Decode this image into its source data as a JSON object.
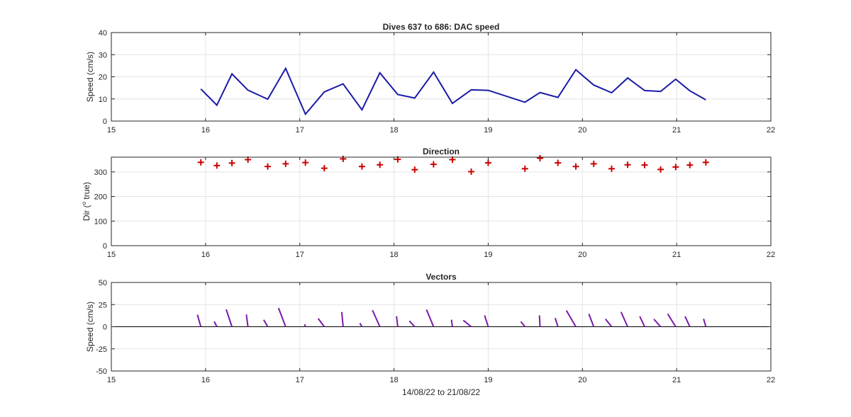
{
  "figure": {
    "xlabel_bottom": "14/08/22 to 21/08/22",
    "colors": {
      "speed_line": "#1a1aa8",
      "direction_marker": "#cc0000",
      "vector_line": "#7a1aa8",
      "grid": "#e4e4e4",
      "axis": "#262626"
    }
  },
  "chart_data": [
    {
      "type": "line",
      "title": "Dives 637 to 686: DAC speed",
      "xlabel": "",
      "ylabel": "Speed (cm/s)",
      "xlim": [
        15,
        22
      ],
      "ylim": [
        0,
        40
      ],
      "xticks": [
        "15",
        "16",
        "17",
        "18",
        "19",
        "20",
        "21",
        "22"
      ],
      "yticks": [
        "0",
        "10",
        "20",
        "30",
        "40"
      ],
      "grid": true,
      "x": [
        15.95,
        16.12,
        16.28,
        16.45,
        16.66,
        16.85,
        17.06,
        17.26,
        17.46,
        17.66,
        17.85,
        18.04,
        18.22,
        18.42,
        18.62,
        18.82,
        19.0,
        19.39,
        19.55,
        19.74,
        19.93,
        20.12,
        20.31,
        20.48,
        20.66,
        20.83,
        20.99,
        21.14,
        21.31
      ],
      "values": [
        14.5,
        7.2,
        21.3,
        14.0,
        9.9,
        23.8,
        3.1,
        13.2,
        16.8,
        5.1,
        21.8,
        12.0,
        10.4,
        22.1,
        8.0,
        14.1,
        13.9,
        8.5,
        12.9,
        10.7,
        23.2,
        16.3,
        12.8,
        19.5,
        13.8,
        13.4,
        18.9,
        13.7,
        9.6
      ]
    },
    {
      "type": "scatter",
      "title": "Direction",
      "xlabel": "",
      "ylabel_main": "Dir (",
      "ylabel_sup": "o",
      "ylabel_tail": " true)",
      "xlim": [
        15,
        22
      ],
      "ylim": [
        0,
        360
      ],
      "xticks": [
        "15",
        "16",
        "17",
        "18",
        "19",
        "20",
        "21",
        "22"
      ],
      "yticks": [
        "0",
        "100",
        "200",
        "300"
      ],
      "grid": true,
      "x": [
        15.95,
        16.12,
        16.28,
        16.45,
        16.66,
        16.85,
        17.06,
        17.26,
        17.46,
        17.66,
        17.85,
        18.04,
        18.22,
        18.42,
        18.62,
        18.82,
        19.0,
        19.39,
        19.55,
        19.74,
        19.93,
        20.12,
        20.31,
        20.48,
        20.66,
        20.83,
        20.99,
        21.14,
        21.31
      ],
      "values": [
        339,
        326,
        336,
        350,
        322,
        333,
        338,
        315,
        353,
        322,
        329,
        351,
        309,
        331,
        350,
        301,
        337,
        313,
        356,
        337,
        322,
        333,
        313,
        329,
        328,
        310,
        320,
        328,
        339
      ]
    },
    {
      "type": "vector",
      "title": "Vectors",
      "xlabel": "14/08/22 to 21/08/22",
      "ylabel": "Speed (cm/s)",
      "xlim": [
        15,
        22
      ],
      "ylim": [
        -50,
        50
      ],
      "xticks": [
        "15",
        "16",
        "17",
        "18",
        "19",
        "20",
        "21",
        "22"
      ],
      "yticks": [
        "-50",
        "-25",
        "0",
        "25",
        "50"
      ],
      "grid": true,
      "x": [
        15.95,
        16.12,
        16.28,
        16.45,
        16.66,
        16.85,
        17.06,
        17.26,
        17.46,
        17.66,
        17.85,
        18.04,
        18.22,
        18.42,
        18.62,
        18.82,
        19.0,
        19.39,
        19.55,
        19.74,
        19.93,
        20.12,
        20.31,
        20.48,
        20.66,
        20.83,
        20.99,
        21.14,
        21.31
      ],
      "speed": [
        14.5,
        7.2,
        21.3,
        14.0,
        9.9,
        23.8,
        3.1,
        13.2,
        16.8,
        5.1,
        21.8,
        12.0,
        10.4,
        22.1,
        8.0,
        14.1,
        13.9,
        8.5,
        12.9,
        10.7,
        23.2,
        16.3,
        12.8,
        19.5,
        13.8,
        13.4,
        18.9,
        13.7,
        9.6
      ],
      "direction_deg_true": [
        339,
        326,
        336,
        350,
        322,
        333,
        338,
        315,
        353,
        322,
        329,
        351,
        309,
        331,
        350,
        301,
        337,
        313,
        356,
        337,
        322,
        333,
        313,
        329,
        328,
        310,
        320,
        328,
        339
      ]
    }
  ]
}
